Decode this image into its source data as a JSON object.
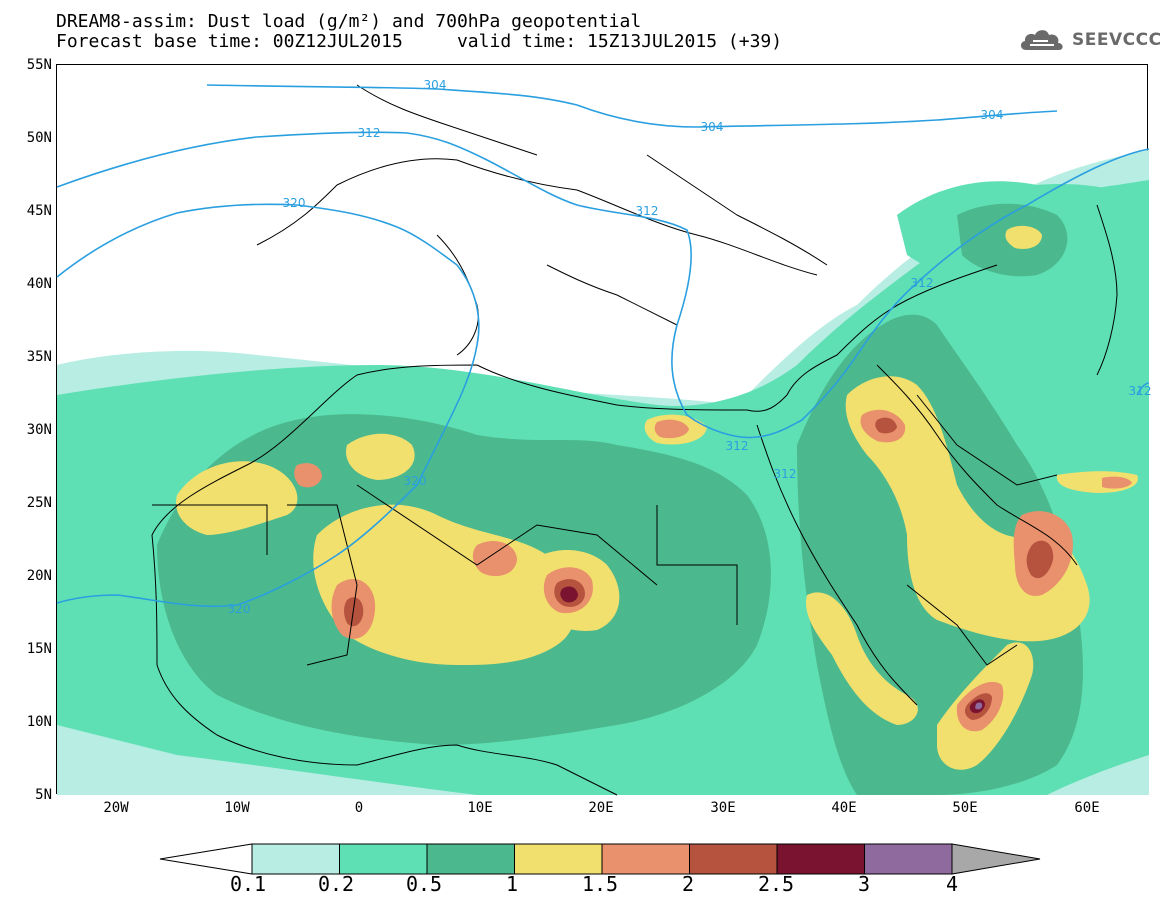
{
  "header": {
    "title_line1": "DREAM8-assim: Dust load (g/m²) and 700hPa geopotential",
    "title_line2": "Forecast base time: 00Z12JUL2015     valid time: 15Z13JUL2015 (+39)"
  },
  "logo": {
    "text": "SEEVCCC",
    "icon": "cloud-icon"
  },
  "axes": {
    "lat_labels": [
      "55N",
      "50N",
      "45N",
      "40N",
      "35N",
      "30N",
      "25N",
      "20N",
      "15N",
      "10N",
      "5N"
    ],
    "lon_labels": [
      "20W",
      "10W",
      "0",
      "10E",
      "20E",
      "30E",
      "40E",
      "50E",
      "60E"
    ]
  },
  "contour_labels": [
    "304",
    "312",
    "320",
    "304",
    "304",
    "312",
    "312",
    "320",
    "320",
    "312",
    "312",
    "312"
  ],
  "colorbar": {
    "ticks": [
      "0.1",
      "0.2",
      "0.5",
      "1",
      "1.5",
      "2",
      "2.5",
      "3",
      "4"
    ],
    "colors": [
      "#ffffff",
      "#b7ede2",
      "#5ee0b4",
      "#4cb88e",
      "#f2e06e",
      "#e8916c",
      "#b5533f",
      "#7a1330",
      "#8f6a9e",
      "#a8a8a8"
    ]
  },
  "colors": {
    "contour_line": "#2a9fe0",
    "coast_line": "#000000"
  }
}
